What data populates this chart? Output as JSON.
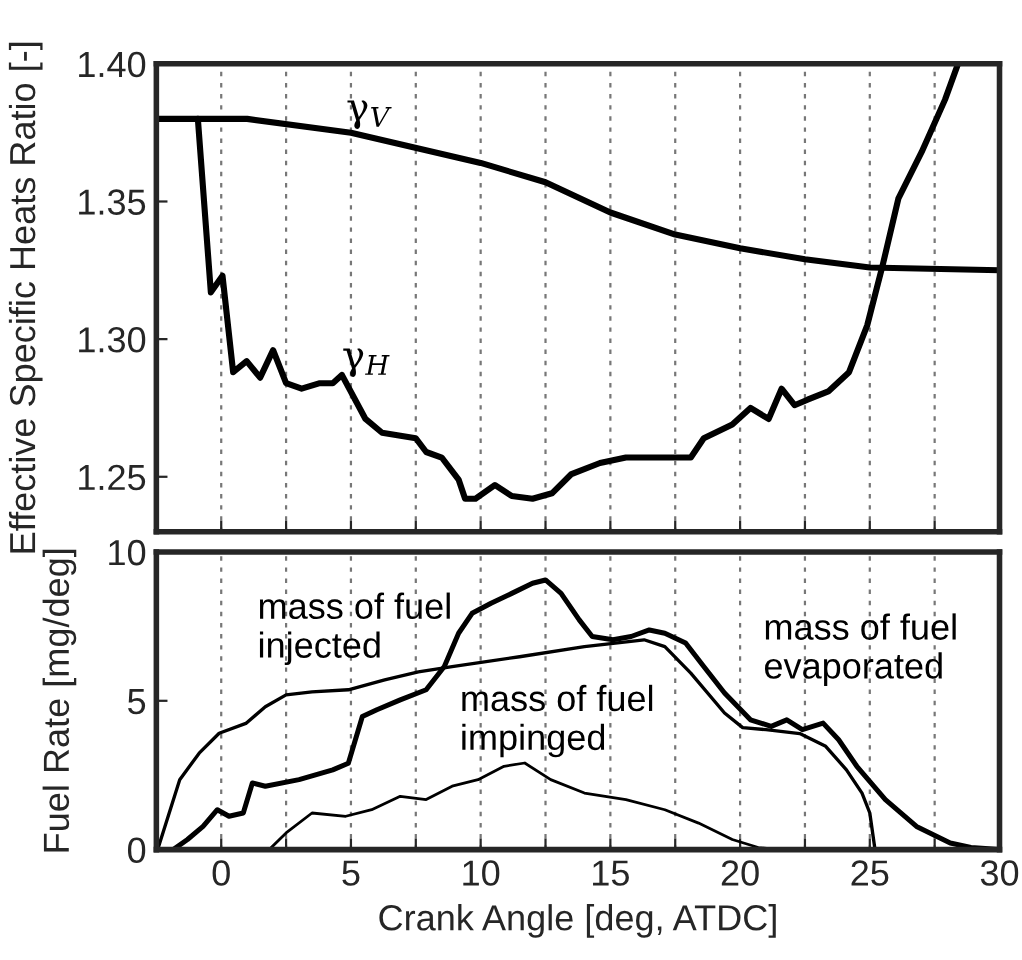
{
  "chart_data": [
    {
      "type": "line",
      "ylabel": "Effective Specific Heats Ratio [-]",
      "xlim": [
        -2.5,
        30
      ],
      "ylim": [
        1.23,
        1.4
      ],
      "xticks": [
        0,
        {
          "value": 2.5,
          "label": null
        },
        5,
        {
          "value": 7.5,
          "label": null
        },
        10,
        {
          "value": 12.5,
          "label": null
        },
        15,
        {
          "value": 17.5,
          "label": null
        },
        20,
        {
          "value": 22.5,
          "label": null
        },
        25,
        {
          "value": 27.5,
          "label": null
        },
        30
      ],
      "yticks": [
        {
          "value": 1.25,
          "label": "1.25"
        },
        {
          "value": 1.3,
          "label": "1.30"
        },
        {
          "value": 1.35,
          "label": "1.35"
        },
        {
          "value": 1.4,
          "label": "1.40"
        }
      ],
      "tick_labels": "y",
      "grid": "x",
      "legend": false,
      "marker": "none",
      "line_style": "solid",
      "series": [
        {
          "name": "γ$_{V}$",
          "color": "#000000",
          "x": [
            -2.5,
            1.0,
            5.0,
            10.0,
            12.5,
            15.0,
            17.5,
            20.0,
            22.5,
            25.0,
            30.0
          ],
          "values": [
            1.38,
            1.38,
            1.375,
            1.364,
            1.357,
            1.346,
            1.338,
            1.333,
            1.329,
            1.326,
            1.325
          ]
        },
        {
          "name": "γ$_{H}$",
          "color": "#000000",
          "x": [
            -0.9,
            -0.4,
            0.05,
            0.46,
            0.98,
            1.5,
            2.0,
            2.5,
            3.1,
            3.8,
            4.3,
            4.65,
            5.56,
            6.2,
            7.5,
            7.9,
            8.5,
            9.15,
            9.4,
            9.8,
            10.55,
            11.2,
            12.0,
            12.75,
            13.5,
            14.6,
            15.6,
            16.6,
            18.1,
            18.6,
            19.7,
            20.4,
            21.1,
            21.6,
            22.1,
            22.6,
            23.4,
            24.2,
            24.9,
            25.5,
            26.1,
            27.0,
            27.9,
            28.4
          ],
          "values": [
            1.38,
            1.317,
            1.323,
            1.288,
            1.292,
            1.286,
            1.296,
            1.284,
            1.282,
            1.284,
            1.284,
            1.287,
            1.271,
            1.266,
            1.264,
            1.259,
            1.257,
            1.249,
            1.242,
            1.242,
            1.247,
            1.243,
            1.242,
            1.244,
            1.251,
            1.255,
            1.257,
            1.257,
            1.257,
            1.264,
            1.269,
            1.275,
            1.271,
            1.282,
            1.276,
            1.278,
            1.281,
            1.288,
            1.305,
            1.327,
            1.351,
            1.368,
            1.387,
            1.4
          ]
        }
      ]
    },
    {
      "type": "line",
      "xlabel": "Crank Angle [deg, ATDC]",
      "ylabel": "Fuel Rate [mg/deg]",
      "xlim": [
        -2.5,
        30
      ],
      "ylim": [
        0,
        10
      ],
      "xticks": [
        0,
        {
          "value": 2.5,
          "label": null
        },
        5,
        {
          "value": 7.5,
          "label": null
        },
        10,
        {
          "value": 12.5,
          "label": null
        },
        15,
        {
          "value": 17.5,
          "label": null
        },
        20,
        {
          "value": 22.5,
          "label": null
        },
        25,
        {
          "value": 27.5,
          "label": null
        },
        30
      ],
      "yticks": [
        0,
        5,
        10
      ],
      "grid": "x",
      "legend": false,
      "marker": "none",
      "line_style": "solid",
      "series": [
        {
          "name": "mass of fuel\ninjected",
          "color": "#000000",
          "x": [
            -2.45,
            -1.6,
            -0.85,
            -0.08,
            0.95,
            1.7,
            2.5,
            3.5,
            4.9,
            6.3,
            7.6,
            8.9,
            11.5,
            14.0,
            16.3,
            17.1,
            18.1,
            19.4,
            20.1,
            21.0,
            22.3,
            23.3,
            24.1,
            24.7,
            25.0,
            25.2
          ],
          "values": [
            0,
            2.35,
            3.24,
            3.91,
            4.24,
            4.8,
            5.2,
            5.3,
            5.37,
            5.7,
            5.97,
            6.15,
            6.48,
            6.82,
            7.05,
            6.82,
            5.93,
            4.59,
            4.1,
            4.03,
            3.9,
            3.47,
            2.68,
            1.9,
            1.23,
            0
          ]
        },
        {
          "name": "mass of fuel\nevaporated",
          "color": "#000000",
          "x": [
            -1.85,
            -1.3,
            -0.7,
            -0.15,
            0.3,
            0.85,
            1.2,
            1.7,
            3.0,
            4.3,
            4.9,
            5.44,
            6.0,
            6.9,
            7.9,
            8.6,
            9.15,
            9.67,
            10.4,
            11.2,
            12.0,
            12.5,
            13.1,
            13.8,
            14.3,
            15.1,
            15.8,
            16.5,
            17.1,
            17.9,
            18.6,
            19.4,
            20.4,
            21.2,
            21.8,
            22.4,
            23.2,
            23.8,
            24.5,
            25.6,
            26.8,
            28.1,
            28.9,
            30.0
          ],
          "values": [
            0,
            0.34,
            0.78,
            1.34,
            1.12,
            1.23,
            2.24,
            2.13,
            2.35,
            2.68,
            2.9,
            4.47,
            4.7,
            5.03,
            5.37,
            6.15,
            7.27,
            7.94,
            8.28,
            8.61,
            8.95,
            9.06,
            8.61,
            7.72,
            7.16,
            7.05,
            7.16,
            7.38,
            7.27,
            6.94,
            6.15,
            5.26,
            4.36,
            4.14,
            4.36,
            4.03,
            4.25,
            3.69,
            2.8,
            1.68,
            0.78,
            0.22,
            0.07,
            0
          ]
        },
        {
          "name": "mass of fuel\nimpinged",
          "color": "#000000",
          "x": [
            1.85,
            2.5,
            3.5,
            4.8,
            5.8,
            6.9,
            7.9,
            8.9,
            9.9,
            10.9,
            11.7,
            12.7,
            14.0,
            15.6,
            17.1,
            18.4,
            19.7,
            20.7,
            21.5
          ],
          "values": [
            0,
            0.56,
            1.23,
            1.12,
            1.34,
            1.79,
            1.68,
            2.13,
            2.35,
            2.8,
            2.91,
            2.35,
            1.9,
            1.68,
            1.34,
            0.89,
            0.34,
            0.07,
            0
          ]
        }
      ]
    }
  ]
}
